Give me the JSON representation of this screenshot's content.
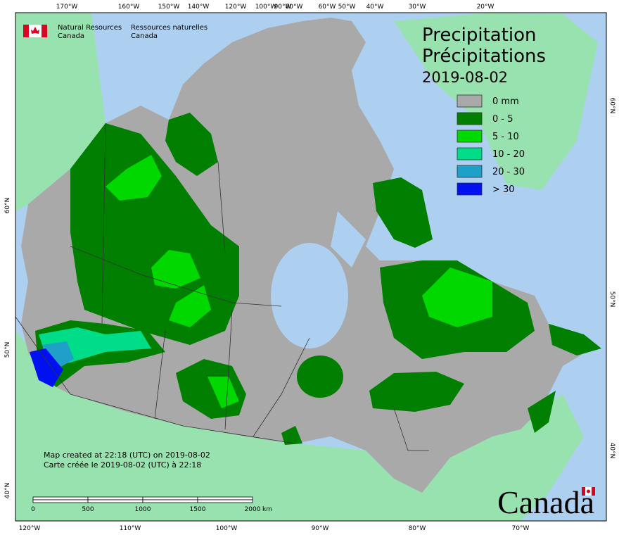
{
  "map": {
    "title": [
      "Precipitation",
      "Précipitations",
      "2019-08-02"
    ],
    "legend": [
      {
        "label": "0 mm",
        "color": "#a9a9a9"
      },
      {
        "label": "0 - 5",
        "color": "#007f00"
      },
      {
        "label": "5 - 10",
        "color": "#00d800"
      },
      {
        "label": "10 - 20",
        "color": "#00dd88"
      },
      {
        "label": "20 - 30",
        "color": "#1fa0c8"
      },
      {
        "label": "> 30",
        "color": "#0010f0"
      }
    ],
    "agency": {
      "english": [
        "Natural Resources",
        "Canada"
      ],
      "french": [
        "Ressources naturelles",
        "Canada"
      ]
    },
    "credits": [
      "Map created at 22:18 (UTC) on 2019-08-02",
      "Carte créée le 2019-08-02 (UTC) à 22:18"
    ],
    "scale_bar": {
      "labels": [
        "0",
        "500",
        "1000",
        "1500",
        "2000"
      ],
      "unit": "km"
    },
    "wordmark": "Canada",
    "top_longitudes": [
      "170°W",
      "160°W",
      "150°W",
      "140°W",
      "120°W",
      "100°W",
      "90°W",
      "80°W",
      "60°W",
      "50°W",
      "40°W",
      "30°W",
      "20°W"
    ],
    "bottom_longitudes": [
      "120°W",
      "110°W",
      "100°W",
      "90°W",
      "80°W",
      "70°W"
    ],
    "left_latitudes": [
      "60°N",
      "50°N",
      "40°N"
    ],
    "right_latitudes": [
      "60°N",
      "50°N",
      "40°N"
    ]
  }
}
